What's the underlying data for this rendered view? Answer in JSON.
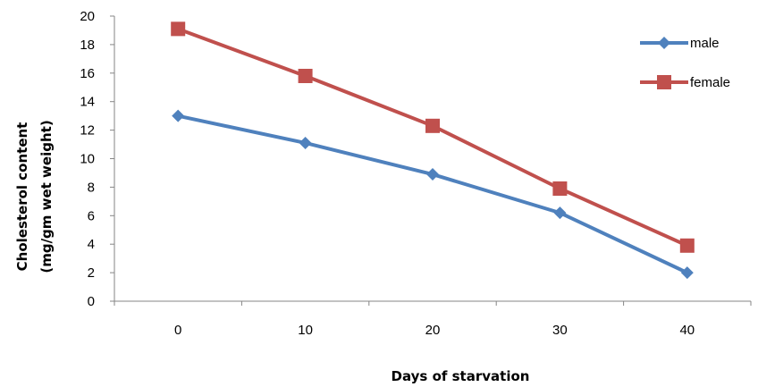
{
  "chart_data": {
    "type": "line",
    "x": [
      0,
      10,
      20,
      30,
      40
    ],
    "categories": [
      "0",
      "10",
      "20",
      "30",
      "40"
    ],
    "series": [
      {
        "name": "male",
        "values": [
          13.0,
          11.1,
          8.9,
          6.2,
          2.0
        ],
        "color": "#4F81BD",
        "marker": "diamond"
      },
      {
        "name": "female",
        "values": [
          19.1,
          15.8,
          12.3,
          7.9,
          3.9
        ],
        "color": "#C0504D",
        "marker": "square"
      }
    ],
    "title": "",
    "xlabel": "Days of starvation",
    "ylabel_line1": "Cholesterol content",
    "ylabel_line2": "(mg/gm wet weight)",
    "ylim": [
      0,
      20
    ],
    "yticks": [
      0,
      2,
      4,
      6,
      8,
      10,
      12,
      14,
      16,
      18,
      20
    ],
    "grid": false,
    "legend_position": "top-right"
  }
}
